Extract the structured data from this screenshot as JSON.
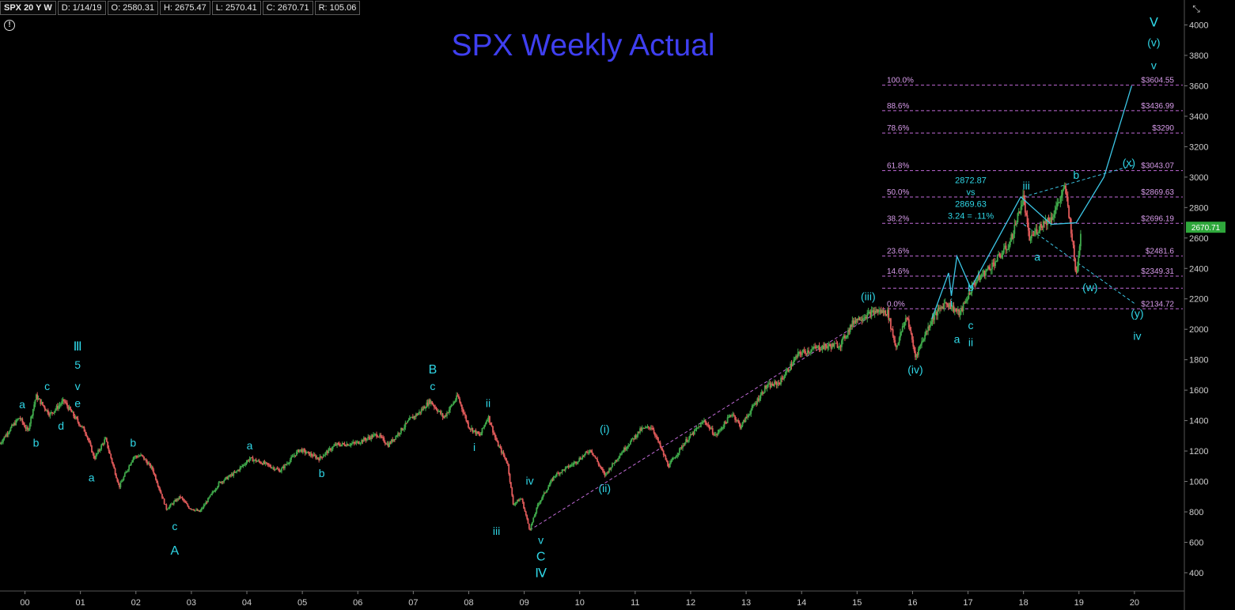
{
  "header": {
    "symbol": "SPX 20 Y W",
    "date": "D: 1/14/19",
    "open": "O: 2580.31",
    "high": "H: 2675.47",
    "low": "L: 2570.41",
    "close": "C: 2670.71",
    "range": "R: 105.06"
  },
  "last_price_badge": "2670.71",
  "colors": {
    "background": "#000000",
    "title": "#3f3ff0",
    "wave_label": "#2fd6e6",
    "wave_line": "#3cc6e6",
    "fib_line": "#c06ad6",
    "fib_text": "#d79bea",
    "candle_up": "#3fa84a",
    "candle_down": "#e05a5a",
    "badge": "#2fa83c"
  },
  "chart_data": {
    "type": "candlestick",
    "title": "SPX Weekly Actual",
    "ylim": [
      280,
      4060
    ],
    "xlim": [
      1999.55,
      2020.9
    ],
    "y_ticks": [
      400,
      600,
      800,
      1000,
      1200,
      1400,
      1600,
      1800,
      2000,
      2200,
      2400,
      2600,
      2800,
      3000,
      3200,
      3400,
      3600,
      3800,
      4000
    ],
    "x_ticks": [
      {
        "t": 2000,
        "label": "00"
      },
      {
        "t": 2001,
        "label": "01"
      },
      {
        "t": 2002,
        "label": "02"
      },
      {
        "t": 2003,
        "label": "03"
      },
      {
        "t": 2004,
        "label": "04"
      },
      {
        "t": 2005,
        "label": "05"
      },
      {
        "t": 2006,
        "label": "06"
      },
      {
        "t": 2007,
        "label": "07"
      },
      {
        "t": 2008,
        "label": "08"
      },
      {
        "t": 2009,
        "label": "09"
      },
      {
        "t": 2010,
        "label": "10"
      },
      {
        "t": 2011,
        "label": "11"
      },
      {
        "t": 2012,
        "label": "12"
      },
      {
        "t": 2013,
        "label": "13"
      },
      {
        "t": 2014,
        "label": "14"
      },
      {
        "t": 2015,
        "label": "15"
      },
      {
        "t": 2016,
        "label": "16"
      },
      {
        "t": 2017,
        "label": "17"
      },
      {
        "t": 2018,
        "label": "18"
      },
      {
        "t": 2019,
        "label": "19"
      },
      {
        "t": 2020,
        "label": "20"
      }
    ],
    "price_path": [
      [
        1999.55,
        1250
      ],
      [
        1999.7,
        1330
      ],
      [
        1999.9,
        1420
      ],
      [
        2000.05,
        1330
      ],
      [
        2000.2,
        1560
      ],
      [
        2000.45,
        1440
      ],
      [
        2000.7,
        1530
      ],
      [
        2000.9,
        1420
      ],
      [
        2001.1,
        1320
      ],
      [
        2001.25,
        1150
      ],
      [
        2001.45,
        1280
      ],
      [
        2001.7,
        965
      ],
      [
        2001.95,
        1160
      ],
      [
        2002.1,
        1170
      ],
      [
        2002.3,
        1080
      ],
      [
        2002.55,
        820
      ],
      [
        2002.8,
        900
      ],
      [
        2002.95,
        830
      ],
      [
        2003.15,
        800
      ],
      [
        2003.5,
        990
      ],
      [
        2003.8,
        1060
      ],
      [
        2004.05,
        1150
      ],
      [
        2004.3,
        1120
      ],
      [
        2004.6,
        1070
      ],
      [
        2004.95,
        1210
      ],
      [
        2005.3,
        1150
      ],
      [
        2005.6,
        1240
      ],
      [
        2005.95,
        1250
      ],
      [
        2006.35,
        1310
      ],
      [
        2006.55,
        1240
      ],
      [
        2006.95,
        1410
      ],
      [
        2007.1,
        1450
      ],
      [
        2007.3,
        1530
      ],
      [
        2007.55,
        1420
      ],
      [
        2007.8,
        1560
      ],
      [
        2008.0,
        1360
      ],
      [
        2008.2,
        1300
      ],
      [
        2008.35,
        1430
      ],
      [
        2008.5,
        1260
      ],
      [
        2008.7,
        1120
      ],
      [
        2008.8,
        850
      ],
      [
        2008.95,
        890
      ],
      [
        2009.1,
        680
      ],
      [
        2009.25,
        850
      ],
      [
        2009.55,
        1040
      ],
      [
        2009.9,
        1120
      ],
      [
        2010.2,
        1210
      ],
      [
        2010.45,
        1040
      ],
      [
        2010.75,
        1190
      ],
      [
        2011.1,
        1340
      ],
      [
        2011.3,
        1360
      ],
      [
        2011.6,
        1100
      ],
      [
        2011.9,
        1260
      ],
      [
        2012.25,
        1400
      ],
      [
        2012.45,
        1300
      ],
      [
        2012.75,
        1450
      ],
      [
        2012.9,
        1360
      ],
      [
        2013.35,
        1620
      ],
      [
        2013.6,
        1650
      ],
      [
        2013.95,
        1840
      ],
      [
        2014.3,
        1880
      ],
      [
        2014.7,
        1900
      ],
      [
        2014.95,
        2060
      ],
      [
        2015.35,
        2120
      ],
      [
        2015.55,
        2110
      ],
      [
        2015.7,
        1880
      ],
      [
        2015.9,
        2090
      ],
      [
        2016.05,
        1820
      ],
      [
        2016.35,
        2070
      ],
      [
        2016.6,
        2180
      ],
      [
        2016.85,
        2100
      ],
      [
        2017.1,
        2300
      ],
      [
        2017.45,
        2430
      ],
      [
        2017.75,
        2560
      ],
      [
        2018.0,
        2870
      ],
      [
        2018.1,
        2590
      ],
      [
        2018.35,
        2700
      ],
      [
        2018.5,
        2730
      ],
      [
        2018.75,
        2930
      ],
      [
        2018.85,
        2680
      ],
      [
        2018.95,
        2350
      ],
      [
        2019.04,
        2670
      ]
    ],
    "fib_levels": [
      {
        "pct": "100.0%",
        "price": "$3604.55",
        "value": 3604.55
      },
      {
        "pct": "88.6%",
        "price": "$3436.99",
        "value": 3436.99
      },
      {
        "pct": "78.6%",
        "price": "$3290",
        "value": 3290
      },
      {
        "pct": "61.8%",
        "price": "$3043.07",
        "value": 3043.07
      },
      {
        "pct": "50.0%",
        "price": "$2869.63",
        "value": 2869.63
      },
      {
        "pct": "38.2%",
        "price": "$2696.19",
        "value": 2696.19
      },
      {
        "pct": "23.6%",
        "price": "$2481.6",
        "value": 2481.6
      },
      {
        "pct": "14.6%",
        "price": "$2349.31",
        "value": 2349.31
      },
      {
        "pct": "",
        "price": "",
        "value": 2270
      },
      {
        "pct": "0.0%",
        "price": "$2134.72",
        "value": 2134.72
      }
    ],
    "wave_labels": [
      {
        "t": "a",
        "x": 1999.95,
        "y": 1480
      },
      {
        "t": "b",
        "x": 2000.2,
        "y": 1230
      },
      {
        "t": "c",
        "x": 2000.4,
        "y": 1600
      },
      {
        "t": "d",
        "x": 2000.65,
        "y": 1340
      },
      {
        "t": "e",
        "x": 2000.95,
        "y": 1490
      },
      {
        "t": "v",
        "x": 2000.95,
        "y": 1600
      },
      {
        "t": "5",
        "x": 2000.95,
        "y": 1740
      },
      {
        "t": "Ⅲ",
        "x": 2000.95,
        "y": 1860
      },
      {
        "t": "a",
        "x": 2001.2,
        "y": 1000
      },
      {
        "t": "b",
        "x": 2001.95,
        "y": 1230
      },
      {
        "t": "c",
        "x": 2002.7,
        "y": 680
      },
      {
        "t": "A",
        "x": 2002.7,
        "y": 520
      },
      {
        "t": "a",
        "x": 2004.05,
        "y": 1210
      },
      {
        "t": "b",
        "x": 2005.35,
        "y": 1030
      },
      {
        "t": "c",
        "x": 2007.35,
        "y": 1600
      },
      {
        "t": "B",
        "x": 2007.35,
        "y": 1710
      },
      {
        "t": "ii",
        "x": 2008.35,
        "y": 1490
      },
      {
        "t": "i",
        "x": 2008.1,
        "y": 1200
      },
      {
        "t": "iv",
        "x": 2009.1,
        "y": 980
      },
      {
        "t": "iii",
        "x": 2008.5,
        "y": 650
      },
      {
        "t": "v",
        "x": 2009.3,
        "y": 590
      },
      {
        "t": "C",
        "x": 2009.3,
        "y": 480
      },
      {
        "t": "Ⅳ",
        "x": 2009.3,
        "y": 370
      },
      {
        "t": "(i)",
        "x": 2010.45,
        "y": 1320
      },
      {
        "t": "(ii)",
        "x": 2010.45,
        "y": 930
      },
      {
        "t": "(iii)",
        "x": 2015.2,
        "y": 2190
      },
      {
        "t": "(iv)",
        "x": 2016.05,
        "y": 1710
      },
      {
        "t": "i",
        "x": 2016.7,
        "y": 2150
      },
      {
        "t": "a",
        "x": 2016.8,
        "y": 1910
      },
      {
        "t": "b",
        "x": 2017.05,
        "y": 2250
      },
      {
        "t": "c",
        "x": 2017.05,
        "y": 2000
      },
      {
        "t": "ii",
        "x": 2017.05,
        "y": 1890
      },
      {
        "t": "iii",
        "x": 2018.05,
        "y": 2920
      },
      {
        "t": "a",
        "x": 2018.25,
        "y": 2450
      },
      {
        "t": "b",
        "x": 2018.95,
        "y": 2990
      },
      {
        "t": "(w)",
        "x": 2019.2,
        "y": 2250
      },
      {
        "t": "(x)",
        "x": 2019.9,
        "y": 3070
      },
      {
        "t": "(y)",
        "x": 2020.05,
        "y": 2080
      },
      {
        "t": "iv",
        "x": 2020.05,
        "y": 1930
      },
      {
        "t": "v",
        "x": 2020.35,
        "y": 3710
      },
      {
        "t": "(v)",
        "x": 2020.35,
        "y": 3860
      },
      {
        "t": "Ⅴ",
        "x": 2020.35,
        "y": 3990
      }
    ],
    "annotation_lines": [
      "2872.87",
      "vs",
      "2869.63",
      "3.24 = .11%"
    ],
    "wave_paths": [
      [
        [
          2016.35,
          2070
        ],
        [
          2016.65,
          2370
        ],
        [
          2016.7,
          2220
        ],
        [
          2016.8,
          2480
        ],
        [
          2017.05,
          2270
        ],
        [
          2017.95,
          2870
        ],
        [
          2018.5,
          2690
        ],
        [
          2018.95,
          2700
        ],
        [
          2019.45,
          3000
        ],
        [
          2019.95,
          3600
        ]
      ]
    ],
    "trend_dashed": [
      [
        [
          2009.1,
          680
        ],
        [
          2015.4,
          2120
        ]
      ],
      [
        [
          2018.0,
          2870
        ],
        [
          2020.0,
          3080
        ]
      ],
      [
        [
          2018.0,
          2690
        ],
        [
          2020.0,
          2170
        ]
      ]
    ]
  }
}
